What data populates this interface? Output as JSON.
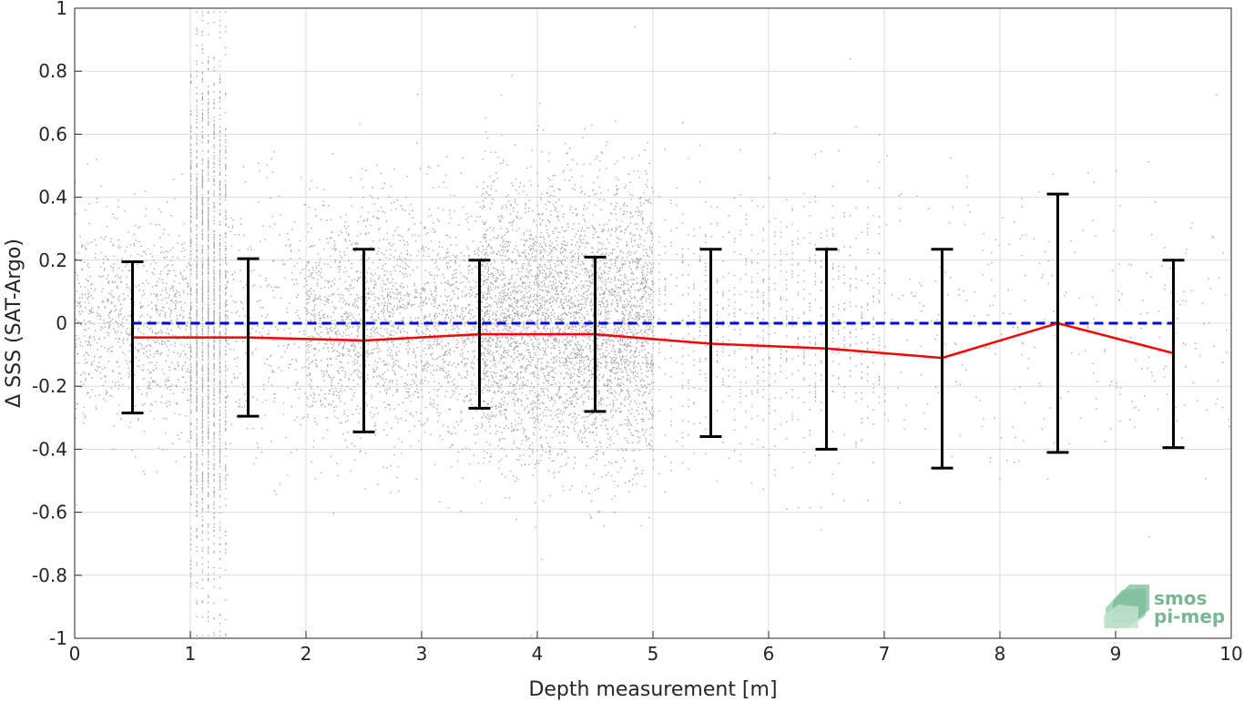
{
  "chart_data": {
    "type": "scatter",
    "xlabel": "Depth measurement [m]",
    "ylabel": "Δ SSS (SAT-Argo)",
    "xlim": [
      0,
      10
    ],
    "ylim": [
      -1,
      1
    ],
    "x_ticks": [
      "0",
      "1",
      "2",
      "3",
      "4",
      "5",
      "6",
      "7",
      "8",
      "9",
      "10"
    ],
    "y_ticks": [
      "1",
      "0.8",
      "0.6",
      "0.4",
      "0.2",
      "0",
      "-0.2",
      "-0.4",
      "-0.6",
      "-0.8",
      "-1"
    ],
    "grid": true,
    "scatter_color": "#8c8c8c",
    "mean_line": {
      "color": "#ff0000",
      "points": [
        {
          "x": 0.5,
          "y": -0.045
        },
        {
          "x": 1.5,
          "y": -0.045
        },
        {
          "x": 2.5,
          "y": -0.055
        },
        {
          "x": 3.5,
          "y": -0.035
        },
        {
          "x": 4.5,
          "y": -0.035
        },
        {
          "x": 5.5,
          "y": -0.065
        },
        {
          "x": 6.5,
          "y": -0.08
        },
        {
          "x": 7.5,
          "y": -0.11
        },
        {
          "x": 8.5,
          "y": 0.0
        },
        {
          "x": 9.5,
          "y": -0.095
        }
      ]
    },
    "error_bars": [
      {
        "x": 0.5,
        "low": -0.285,
        "high": 0.195
      },
      {
        "x": 1.5,
        "low": -0.295,
        "high": 0.205
      },
      {
        "x": 2.5,
        "low": -0.345,
        "high": 0.235
      },
      {
        "x": 3.5,
        "low": -0.27,
        "high": 0.2
      },
      {
        "x": 4.5,
        "low": -0.28,
        "high": 0.21
      },
      {
        "x": 5.5,
        "low": -0.36,
        "high": 0.235
      },
      {
        "x": 6.5,
        "low": -0.4,
        "high": 0.235
      },
      {
        "x": 7.5,
        "low": -0.46,
        "high": 0.235
      },
      {
        "x": 8.5,
        "low": -0.41,
        "high": 0.41
      },
      {
        "x": 9.5,
        "low": -0.395,
        "high": 0.2
      }
    ],
    "zero_line": {
      "y": 0,
      "x_range": [
        0.5,
        9.5
      ],
      "color": "#0000dd",
      "style": "dashed"
    },
    "scatter_density": [
      {
        "x_range": [
          0,
          1
        ],
        "spread": 0.3,
        "density": "medium"
      },
      {
        "x_range": [
          1,
          1.3
        ],
        "spread": 0.8,
        "density": "high",
        "vertical_columns": true
      },
      {
        "x_range": [
          1.3,
          2
        ],
        "spread": 0.4,
        "density": "low"
      },
      {
        "x_range": [
          2,
          3.5
        ],
        "spread": 0.35,
        "density": "high"
      },
      {
        "x_range": [
          3.5,
          5
        ],
        "spread": 0.4,
        "density": "very-high"
      },
      {
        "x_range": [
          5,
          7
        ],
        "spread": 0.4,
        "density": "medium",
        "vertical_columns": true
      },
      {
        "x_range": [
          7,
          10
        ],
        "spread": 0.4,
        "density": "low"
      }
    ]
  },
  "logo": {
    "line1": "smos",
    "line2": "pi-mep",
    "color": "#76b894"
  }
}
